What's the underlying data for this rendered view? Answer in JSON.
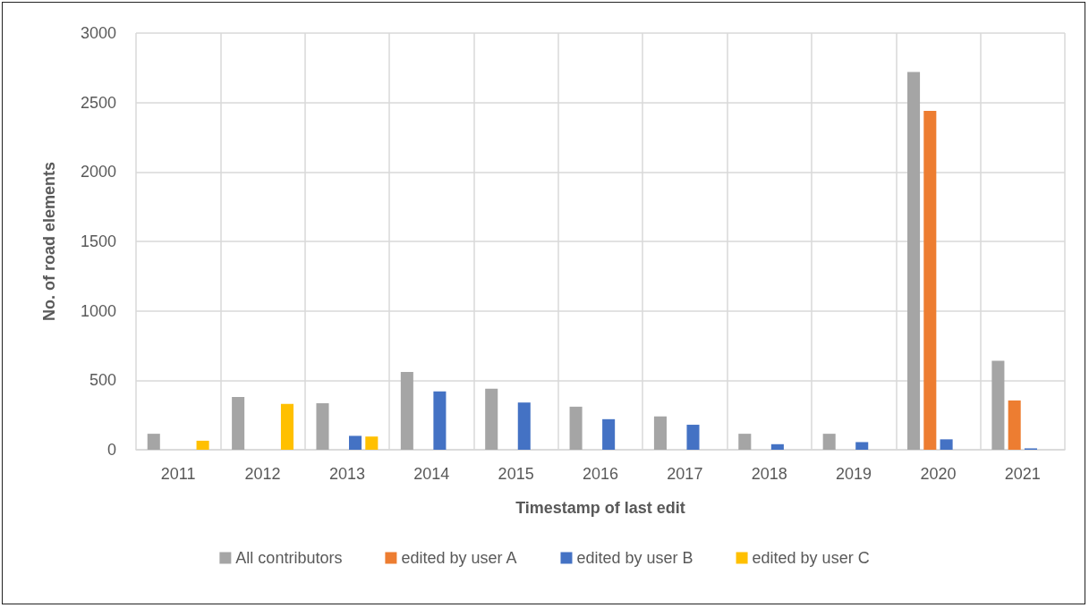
{
  "chart_data": {
    "type": "bar",
    "xlabel": "Timestamp of last edit",
    "ylabel": "No. of road elements",
    "categories": [
      "2011",
      "2012",
      "2013",
      "2014",
      "2015",
      "2016",
      "2017",
      "2018",
      "2019",
      "2020",
      "2021"
    ],
    "series": [
      {
        "name": "All contributors",
        "color": "#a5a5a5",
        "values": [
          115,
          380,
          335,
          560,
          440,
          310,
          240,
          115,
          115,
          2720,
          640
        ]
      },
      {
        "name": "edited by user A",
        "color": "#ed7d31",
        "values": [
          null,
          null,
          null,
          null,
          null,
          null,
          null,
          null,
          null,
          2440,
          355
        ]
      },
      {
        "name": "edited by user B",
        "color": "#4472c4",
        "values": [
          null,
          null,
          100,
          420,
          340,
          220,
          180,
          40,
          55,
          75,
          10
        ]
      },
      {
        "name": "edited by user C",
        "color": "#ffc000",
        "values": [
          65,
          330,
          95,
          null,
          null,
          null,
          null,
          null,
          null,
          null,
          null
        ]
      }
    ],
    "ylim": [
      0,
      3000
    ],
    "yticks": [
      0,
      500,
      1000,
      1500,
      2000,
      2500,
      3000
    ],
    "grid": true,
    "legend": "bottom"
  }
}
